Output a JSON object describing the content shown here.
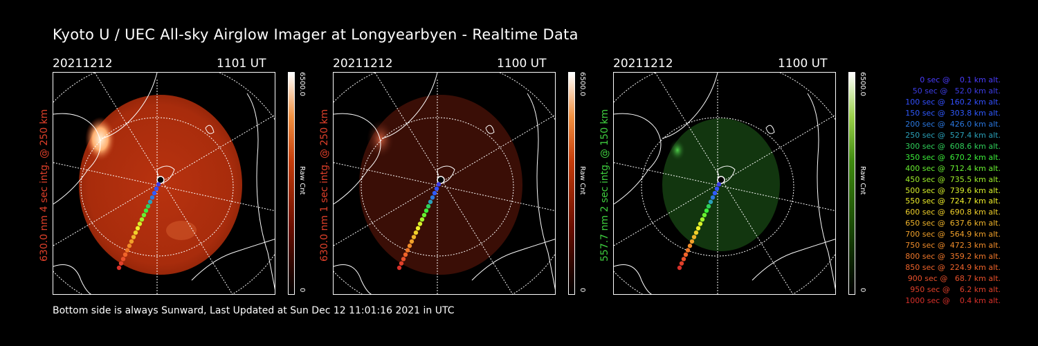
{
  "title": "Kyoto U / UEC All-sky Airglow Imager at Longyearbyen - Realtime Data",
  "footer": "Bottom side is always Sunward, Last Updated at Sun Dec 12 11:01:16 2021 in UTC",
  "panels": [
    {
      "date": "20211212",
      "time": "1101 UT",
      "side_label": "630.0 nm 4 sec intg. @ 250 km",
      "label_color": "#e0402a",
      "cbar_max": "6500.0",
      "cbar_min": "0",
      "cbar_unit": "Raw Cnt",
      "glow": "red-bright"
    },
    {
      "date": "20211212",
      "time": "1100 UT",
      "side_label": "630.0 nm 1 sec intg. @ 250 km",
      "label_color": "#e0402a",
      "cbar_max": "6500.0",
      "cbar_min": "0",
      "cbar_unit": "Raw Cnt",
      "glow": "red-dim"
    },
    {
      "date": "20211212",
      "time": "1100 UT",
      "side_label": "557.7 nm 2 sec intg. @ 150 km",
      "label_color": "#3fcf3f",
      "cbar_max": "6500.0",
      "cbar_min": "0",
      "cbar_unit": "Raw Cnt",
      "glow": "green"
    }
  ],
  "legend": [
    {
      "text": "0 sec @    0.1 km alt.",
      "color": "#4a3cff"
    },
    {
      "text": "50 sec @   52.0 km alt.",
      "color": "#3d3de6"
    },
    {
      "text": "100 sec @  160.2 km alt.",
      "color": "#3350ff"
    },
    {
      "text": "150 sec @  303.8 km alt.",
      "color": "#2f5aff"
    },
    {
      "text": "200 sec @  426.0 km alt.",
      "color": "#2a78e0"
    },
    {
      "text": "250 sec @  527.4 km alt.",
      "color": "#2aa0b8"
    },
    {
      "text": "300 sec @  608.6 km alt.",
      "color": "#2fd05a"
    },
    {
      "text": "350 sec @  670.2 km alt.",
      "color": "#3cf03a"
    },
    {
      "text": "400 sec @  712.4 km alt.",
      "color": "#68f030"
    },
    {
      "text": "450 sec @  735.5 km alt.",
      "color": "#a0f02a"
    },
    {
      "text": "500 sec @  739.6 km alt.",
      "color": "#d8f02a"
    },
    {
      "text": "550 sec @  724.7 km alt.",
      "color": "#f0f02a"
    },
    {
      "text": "600 sec @  690.8 km alt.",
      "color": "#f0d02a"
    },
    {
      "text": "650 sec @  637.6 km alt.",
      "color": "#f0b42a"
    },
    {
      "text": "700 sec @  564.9 km alt.",
      "color": "#f0a02a"
    },
    {
      "text": "750 sec @  472.3 km alt.",
      "color": "#f08c2a"
    },
    {
      "text": "800 sec @  359.2 km alt.",
      "color": "#f0782a"
    },
    {
      "text": "850 sec @  224.9 km alt.",
      "color": "#f0642a"
    },
    {
      "text": "900 sec @   68.7 km alt.",
      "color": "#e8502a"
    },
    {
      "text": "950 sec @    6.2 km alt.",
      "color": "#e0402a"
    },
    {
      "text": "1000 sec @    0.4 km alt.",
      "color": "#d8302a"
    }
  ]
}
